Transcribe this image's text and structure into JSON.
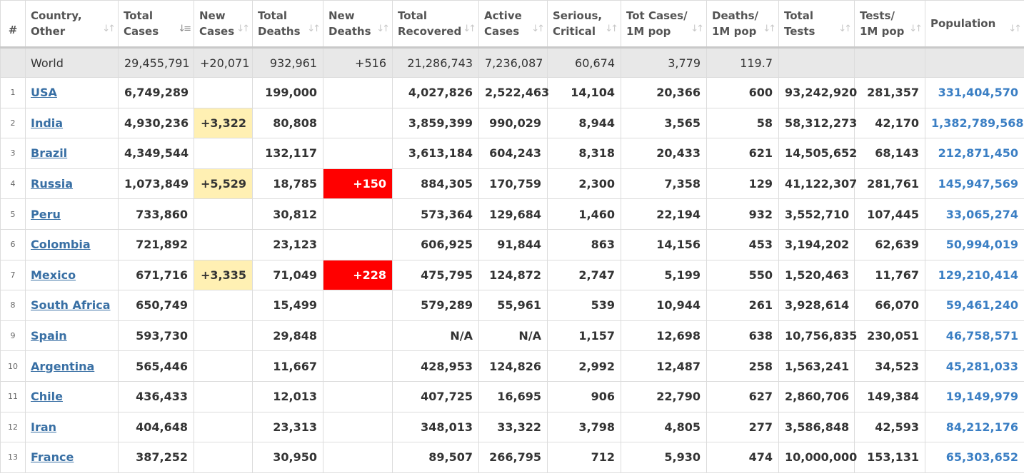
{
  "colors": {
    "new_cases_highlight": "#fff0b3",
    "new_deaths_highlight": "#ff0000",
    "world_row_bg": "#e8e8e8",
    "country_link": "#386fa4",
    "population_text": "#3b7fc4",
    "header_text": "#545454"
  },
  "headers": [
    {
      "line1": "#",
      "line2": "",
      "sort_icon": "none"
    },
    {
      "line1": "Country,",
      "line2": "Other",
      "sort_icon": "sort-both-icon"
    },
    {
      "line1": "Total",
      "line2": "Cases",
      "sort_icon": "sort-desc-active-icon"
    },
    {
      "line1": "New",
      "line2": "Cases",
      "sort_icon": "sort-both-icon"
    },
    {
      "line1": "Total",
      "line2": "Deaths",
      "sort_icon": "sort-both-icon"
    },
    {
      "line1": "New",
      "line2": "Deaths",
      "sort_icon": "sort-both-icon"
    },
    {
      "line1": "Total",
      "line2": "Recovered",
      "sort_icon": "sort-both-icon"
    },
    {
      "line1": "Active",
      "line2": "Cases",
      "sort_icon": "sort-both-icon"
    },
    {
      "line1": "Serious,",
      "line2": "Critical",
      "sort_icon": "sort-both-icon"
    },
    {
      "line1": "Tot Cases/",
      "line2": "1M pop",
      "sort_icon": "sort-both-icon"
    },
    {
      "line1": "Deaths/",
      "line2": "1M pop",
      "sort_icon": "sort-both-icon"
    },
    {
      "line1": "Total",
      "line2": "Tests",
      "sort_icon": "sort-both-icon"
    },
    {
      "line1": "Tests/",
      "line2": "1M pop",
      "sort_icon": "sort-both-icon"
    },
    {
      "line1": "Population",
      "line2": "",
      "sort_icon": "sort-both-icon"
    }
  ],
  "world": {
    "country": "World",
    "total_cases": "29,455,791",
    "new_cases": "+20,071",
    "total_deaths": "932,961",
    "new_deaths": "+516",
    "total_recovered": "21,286,743",
    "active_cases": "7,236,087",
    "serious_critical": "60,674",
    "tot_cases_1m": "3,779",
    "deaths_1m": "119.7",
    "total_tests": "",
    "tests_1m": "",
    "population": ""
  },
  "rows": [
    {
      "num": "1",
      "country": "USA",
      "total_cases": "6,749,289",
      "new_cases": "",
      "total_deaths": "199,000",
      "new_deaths": "",
      "total_recovered": "4,027,826",
      "active_cases": "2,522,463",
      "serious_critical": "14,104",
      "tot_cases_1m": "20,366",
      "deaths_1m": "600",
      "total_tests": "93,242,920",
      "tests_1m": "281,357",
      "population": "331,404,570"
    },
    {
      "num": "2",
      "country": "India",
      "total_cases": "4,930,236",
      "new_cases": "+3,322",
      "total_deaths": "80,808",
      "new_deaths": "",
      "total_recovered": "3,859,399",
      "active_cases": "990,029",
      "serious_critical": "8,944",
      "tot_cases_1m": "3,565",
      "deaths_1m": "58",
      "total_tests": "58,312,273",
      "tests_1m": "42,170",
      "population": "1,382,789,568"
    },
    {
      "num": "3",
      "country": "Brazil",
      "total_cases": "4,349,544",
      "new_cases": "",
      "total_deaths": "132,117",
      "new_deaths": "",
      "total_recovered": "3,613,184",
      "active_cases": "604,243",
      "serious_critical": "8,318",
      "tot_cases_1m": "20,433",
      "deaths_1m": "621",
      "total_tests": "14,505,652",
      "tests_1m": "68,143",
      "population": "212,871,450"
    },
    {
      "num": "4",
      "country": "Russia",
      "total_cases": "1,073,849",
      "new_cases": "+5,529",
      "total_deaths": "18,785",
      "new_deaths": "+150",
      "total_recovered": "884,305",
      "active_cases": "170,759",
      "serious_critical": "2,300",
      "tot_cases_1m": "7,358",
      "deaths_1m": "129",
      "total_tests": "41,122,307",
      "tests_1m": "281,761",
      "population": "145,947,569"
    },
    {
      "num": "5",
      "country": "Peru",
      "total_cases": "733,860",
      "new_cases": "",
      "total_deaths": "30,812",
      "new_deaths": "",
      "total_recovered": "573,364",
      "active_cases": "129,684",
      "serious_critical": "1,460",
      "tot_cases_1m": "22,194",
      "deaths_1m": "932",
      "total_tests": "3,552,710",
      "tests_1m": "107,445",
      "population": "33,065,274"
    },
    {
      "num": "6",
      "country": "Colombia",
      "total_cases": "721,892",
      "new_cases": "",
      "total_deaths": "23,123",
      "new_deaths": "",
      "total_recovered": "606,925",
      "active_cases": "91,844",
      "serious_critical": "863",
      "tot_cases_1m": "14,156",
      "deaths_1m": "453",
      "total_tests": "3,194,202",
      "tests_1m": "62,639",
      "population": "50,994,019"
    },
    {
      "num": "7",
      "country": "Mexico",
      "total_cases": "671,716",
      "new_cases": "+3,335",
      "total_deaths": "71,049",
      "new_deaths": "+228",
      "total_recovered": "475,795",
      "active_cases": "124,872",
      "serious_critical": "2,747",
      "tot_cases_1m": "5,199",
      "deaths_1m": "550",
      "total_tests": "1,520,463",
      "tests_1m": "11,767",
      "population": "129,210,414"
    },
    {
      "num": "8",
      "country": "South Africa",
      "total_cases": "650,749",
      "new_cases": "",
      "total_deaths": "15,499",
      "new_deaths": "",
      "total_recovered": "579,289",
      "active_cases": "55,961",
      "serious_critical": "539",
      "tot_cases_1m": "10,944",
      "deaths_1m": "261",
      "total_tests": "3,928,614",
      "tests_1m": "66,070",
      "population": "59,461,240"
    },
    {
      "num": "9",
      "country": "Spain",
      "total_cases": "593,730",
      "new_cases": "",
      "total_deaths": "29,848",
      "new_deaths": "",
      "total_recovered": "N/A",
      "active_cases": "N/A",
      "serious_critical": "1,157",
      "tot_cases_1m": "12,698",
      "deaths_1m": "638",
      "total_tests": "10,756,835",
      "tests_1m": "230,051",
      "population": "46,758,571"
    },
    {
      "num": "10",
      "country": "Argentina",
      "total_cases": "565,446",
      "new_cases": "",
      "total_deaths": "11,667",
      "new_deaths": "",
      "total_recovered": "428,953",
      "active_cases": "124,826",
      "serious_critical": "2,992",
      "tot_cases_1m": "12,487",
      "deaths_1m": "258",
      "total_tests": "1,563,241",
      "tests_1m": "34,523",
      "population": "45,281,033"
    },
    {
      "num": "11",
      "country": "Chile",
      "total_cases": "436,433",
      "new_cases": "",
      "total_deaths": "12,013",
      "new_deaths": "",
      "total_recovered": "407,725",
      "active_cases": "16,695",
      "serious_critical": "906",
      "tot_cases_1m": "22,790",
      "deaths_1m": "627",
      "total_tests": "2,860,706",
      "tests_1m": "149,384",
      "population": "19,149,979"
    },
    {
      "num": "12",
      "country": "Iran",
      "total_cases": "404,648",
      "new_cases": "",
      "total_deaths": "23,313",
      "new_deaths": "",
      "total_recovered": "348,013",
      "active_cases": "33,322",
      "serious_critical": "3,798",
      "tot_cases_1m": "4,805",
      "deaths_1m": "277",
      "total_tests": "3,586,848",
      "tests_1m": "42,593",
      "population": "84,212,176"
    },
    {
      "num": "13",
      "country": "France",
      "total_cases": "387,252",
      "new_cases": "",
      "total_deaths": "30,950",
      "new_deaths": "",
      "total_recovered": "89,507",
      "active_cases": "266,795",
      "serious_critical": "712",
      "tot_cases_1m": "5,930",
      "deaths_1m": "474",
      "total_tests": "10,000,000",
      "tests_1m": "153,131",
      "population": "65,303,652"
    }
  ]
}
